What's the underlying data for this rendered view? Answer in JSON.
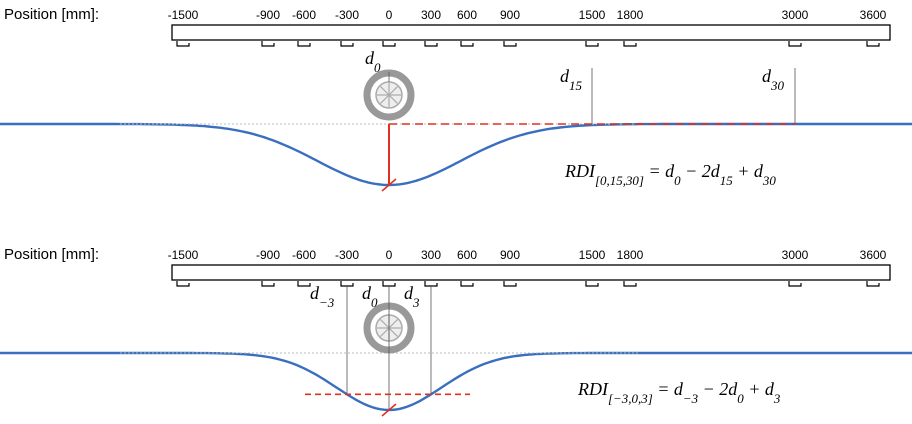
{
  "panels": [
    {
      "position_label": "Position [mm]:",
      "positions": [
        "-1500",
        "-900",
        "-600",
        "-300",
        "0",
        "300",
        "600",
        "900",
        "1500",
        "1800",
        "3000",
        "3600"
      ],
      "sensor_labels": [
        {
          "text": "d",
          "sub": "0"
        },
        {
          "text": "d",
          "sub": "15"
        },
        {
          "text": "d",
          "sub": "30"
        }
      ],
      "formula": [
        {
          "text": "RDI",
          "sub": "[0,15,30]"
        },
        {
          "text": " = d",
          "sub": "0"
        },
        {
          "text": " − 2d",
          "sub": "15"
        },
        {
          "text": " + d",
          "sub": "30"
        }
      ]
    },
    {
      "position_label": "Position [mm]:",
      "positions": [
        "-1500",
        "-900",
        "-600",
        "-300",
        "0",
        "300",
        "600",
        "900",
        "1500",
        "1800",
        "3000",
        "3600"
      ],
      "sensor_labels": [
        {
          "text": "d",
          "sub": "−3"
        },
        {
          "text": "d",
          "sub": "0"
        },
        {
          "text": "d",
          "sub": "3"
        }
      ],
      "formula": [
        {
          "text": "RDI",
          "sub": "[−3,0,3]"
        },
        {
          "text": " = d",
          "sub": "−3"
        },
        {
          "text": " − 2d",
          "sub": "0"
        },
        {
          "text": " + d",
          "sub": "3"
        }
      ]
    }
  ]
}
